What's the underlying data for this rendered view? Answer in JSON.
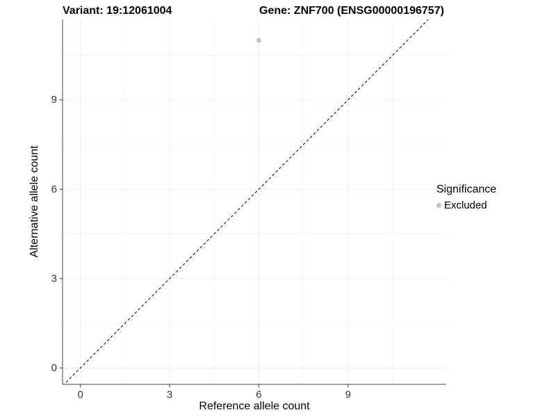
{
  "chart_data": {
    "type": "scatter",
    "title_left": "Variant: 19:12061004",
    "title_right": "Gene: ZNF700 (ENSG00000196757)",
    "xlabel": "Reference allele count",
    "ylabel": "Alternative allele count",
    "xlim": [
      -0.6,
      12.3
    ],
    "ylim": [
      -0.55,
      11.7
    ],
    "xticks": [
      0,
      3,
      6,
      9
    ],
    "yticks": [
      0,
      3,
      6,
      9
    ],
    "xminor": [
      1.5,
      4.5,
      7.5,
      10.5
    ],
    "yminor": [
      1.5,
      4.5,
      7.5,
      10.5
    ],
    "grid": "major+minor",
    "points": [
      {
        "x": 6,
        "y": 11,
        "significance": "Excluded"
      }
    ],
    "identity_line": {
      "slope": 1,
      "intercept": 0,
      "style": "dashed",
      "color": "#000000"
    },
    "legend": {
      "title": "Significance",
      "position": "right",
      "items": [
        {
          "label": "Excluded",
          "color": "#c3c3c3"
        }
      ]
    },
    "colors": {
      "point_excluded": "#c3c3c3",
      "grid_major": "#ebebeb",
      "grid_minor": "#f5f5f5",
      "axis_line": "#404040",
      "tick_text": "#333333"
    }
  }
}
